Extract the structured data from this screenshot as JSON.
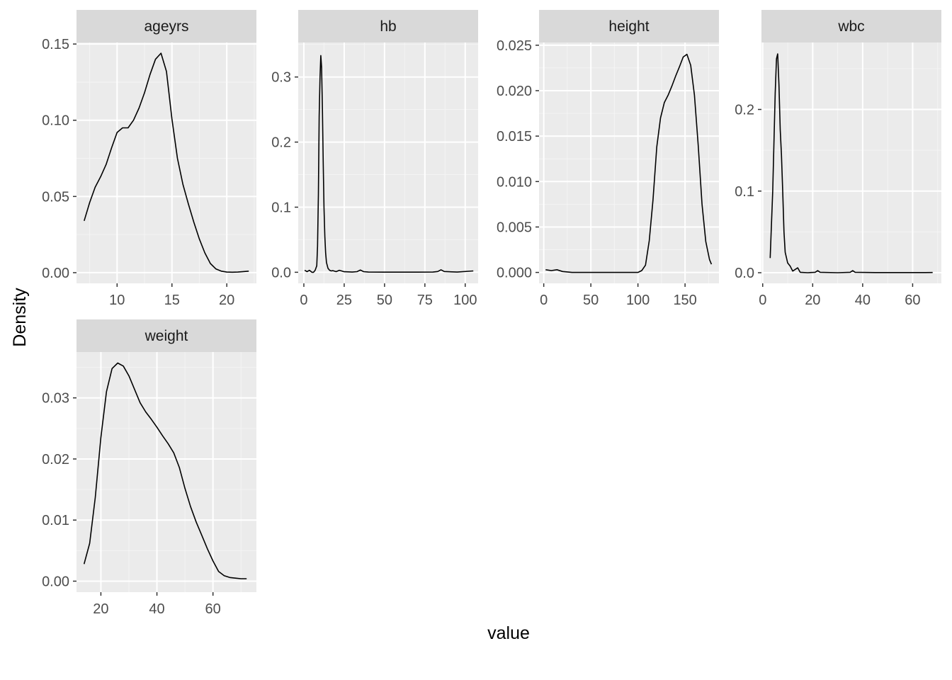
{
  "chart_data": {
    "type": "line",
    "kind": "faceted density plot",
    "xlabel": "value",
    "ylabel": "Density",
    "grid": true,
    "legend": "none",
    "colors": {
      "panel_bg": "#ebebeb",
      "grid_major": "#ffffff",
      "grid_minor": "#f4f4f4",
      "strip_bg": "#d9d9d9",
      "line": "#000000"
    },
    "facets": [
      {
        "label": "ageyrs",
        "xlim": [
          6.3,
          22.7
        ],
        "ylim": [
          -0.007,
          0.151
        ],
        "xticks": [
          10,
          15,
          20
        ],
        "xtick_labels": [
          "10",
          "15",
          "20"
        ],
        "yticks": [
          0,
          0.05,
          0.1,
          0.15
        ],
        "ytick_labels": [
          "0.00",
          "0.05",
          "0.10",
          "0.15"
        ],
        "x": [
          7.0,
          7.5,
          8.0,
          8.5,
          9.0,
          9.5,
          10.0,
          10.5,
          11.0,
          11.5,
          12.0,
          12.5,
          13.0,
          13.5,
          14.0,
          14.5,
          15.0,
          15.5,
          16.0,
          16.5,
          17.0,
          17.5,
          18.0,
          18.5,
          19.0,
          19.5,
          20.0,
          20.5,
          21.0,
          21.5,
          22.0
        ],
        "y": [
          0.034,
          0.046,
          0.056,
          0.063,
          0.071,
          0.082,
          0.092,
          0.095,
          0.095,
          0.1,
          0.108,
          0.118,
          0.13,
          0.14,
          0.144,
          0.132,
          0.101,
          0.075,
          0.058,
          0.045,
          0.033,
          0.022,
          0.013,
          0.006,
          0.0025,
          0.001,
          0.0004,
          0.0003,
          0.0004,
          0.0007,
          0.001
        ]
      },
      {
        "label": "hb",
        "xlim": [
          -3.5,
          108
        ],
        "ylim": [
          -0.017,
          0.353
        ],
        "xticks": [
          0,
          25,
          50,
          75,
          100
        ],
        "xtick_labels": [
          "0",
          "25",
          "50",
          "75",
          "100"
        ],
        "yticks": [
          0,
          0.1,
          0.2,
          0.3
        ],
        "ytick_labels": [
          "0.0",
          "0.1",
          "0.2",
          "0.3"
        ],
        "x": [
          0.5,
          2,
          3.5,
          5,
          6,
          7,
          8,
          8.5,
          9,
          9.5,
          10,
          10.5,
          11,
          11.5,
          12,
          12.5,
          13,
          13.5,
          14,
          15,
          16,
          17,
          18,
          20,
          22,
          25,
          30,
          33,
          35,
          37,
          40,
          50,
          60,
          70,
          80,
          83,
          85,
          87,
          95,
          105
        ],
        "y": [
          0.003,
          0.001,
          0.003,
          0.0,
          0.0,
          0.003,
          0.01,
          0.04,
          0.12,
          0.24,
          0.3,
          0.333,
          0.315,
          0.25,
          0.17,
          0.1,
          0.055,
          0.03,
          0.015,
          0.006,
          0.003,
          0.002,
          0.0025,
          0.001,
          0.003,
          0.0008,
          0.0003,
          0.001,
          0.0035,
          0.001,
          0.0003,
          0.0002,
          0.0002,
          0.0002,
          0.0003,
          0.0012,
          0.0038,
          0.0012,
          0.0003,
          0.002
        ]
      },
      {
        "label": "height",
        "xlim": [
          -5,
          186
        ],
        "ylim": [
          -0.0012,
          0.0253
        ],
        "xticks": [
          0,
          50,
          100,
          150
        ],
        "xtick_labels": [
          "0",
          "50",
          "100",
          "150"
        ],
        "yticks": [
          0,
          0.005,
          0.01,
          0.015,
          0.02,
          0.025
        ],
        "ytick_labels": [
          "0.000",
          "0.005",
          "0.010",
          "0.015",
          "0.020",
          "0.025"
        ],
        "x": [
          2,
          8,
          14,
          20,
          30,
          50,
          70,
          90,
          100,
          104,
          108,
          112,
          116,
          120,
          124,
          128,
          132,
          136,
          140,
          144,
          148,
          152,
          156,
          160,
          164,
          168,
          172,
          176,
          178
        ],
        "y": [
          0.0003,
          0.0002,
          0.0003,
          0.0001,
          0.0,
          0.0,
          0.0,
          0.0,
          0.0,
          0.0002,
          0.0008,
          0.0035,
          0.008,
          0.0138,
          0.017,
          0.0187,
          0.0195,
          0.0205,
          0.0216,
          0.0226,
          0.0237,
          0.024,
          0.0228,
          0.0195,
          0.014,
          0.0075,
          0.0034,
          0.0014,
          0.0009
        ]
      },
      {
        "label": "wbc",
        "xlim": [
          -0.5,
          71.5
        ],
        "ylim": [
          -0.013,
          0.282
        ],
        "xticks": [
          0,
          20,
          40,
          60
        ],
        "xtick_labels": [
          "0",
          "20",
          "40",
          "60"
        ],
        "yticks": [
          0,
          0.1,
          0.2
        ],
        "ytick_labels": [
          "0.0",
          "0.1",
          "0.2"
        ],
        "x": [
          3,
          4,
          5,
          5.5,
          6,
          6.5,
          7,
          7.5,
          8,
          8.5,
          9,
          10,
          11,
          12,
          13,
          14,
          15,
          18,
          21,
          22,
          23,
          30,
          35,
          36,
          37,
          45,
          55,
          65,
          68
        ],
        "y": [
          0.018,
          0.1,
          0.22,
          0.262,
          0.268,
          0.23,
          0.175,
          0.145,
          0.1,
          0.05,
          0.025,
          0.012,
          0.008,
          0.002,
          0.004,
          0.006,
          0.0005,
          0.0,
          0.0005,
          0.0025,
          0.0005,
          0.0,
          0.0005,
          0.0025,
          0.0005,
          0.0002,
          0.0002,
          0.0002,
          0.0003
        ]
      },
      {
        "label": "weight",
        "xlim": [
          11.3,
          75.5
        ],
        "ylim": [
          -0.0018,
          0.0375
        ],
        "xticks": [
          20,
          40,
          60
        ],
        "xtick_labels": [
          "20",
          "40",
          "60"
        ],
        "yticks": [
          0,
          0.01,
          0.02,
          0.03
        ],
        "ytick_labels": [
          "0.00",
          "0.01",
          "0.02",
          "0.03"
        ],
        "x": [
          14,
          16,
          18,
          20,
          22,
          24,
          26,
          28,
          30,
          32,
          34,
          36,
          38,
          40,
          42,
          44,
          46,
          48,
          50,
          52,
          54,
          56,
          58,
          60,
          62,
          64,
          66,
          68,
          70,
          72
        ],
        "y": [
          0.0028,
          0.0062,
          0.0137,
          0.0235,
          0.031,
          0.0348,
          0.0357,
          0.0352,
          0.0336,
          0.0314,
          0.0292,
          0.0277,
          0.0265,
          0.0252,
          0.0238,
          0.0225,
          0.021,
          0.0186,
          0.0152,
          0.0122,
          0.0097,
          0.0075,
          0.0053,
          0.0033,
          0.0016,
          0.0009,
          0.0006,
          0.0005,
          0.0004,
          0.0004
        ]
      }
    ]
  }
}
